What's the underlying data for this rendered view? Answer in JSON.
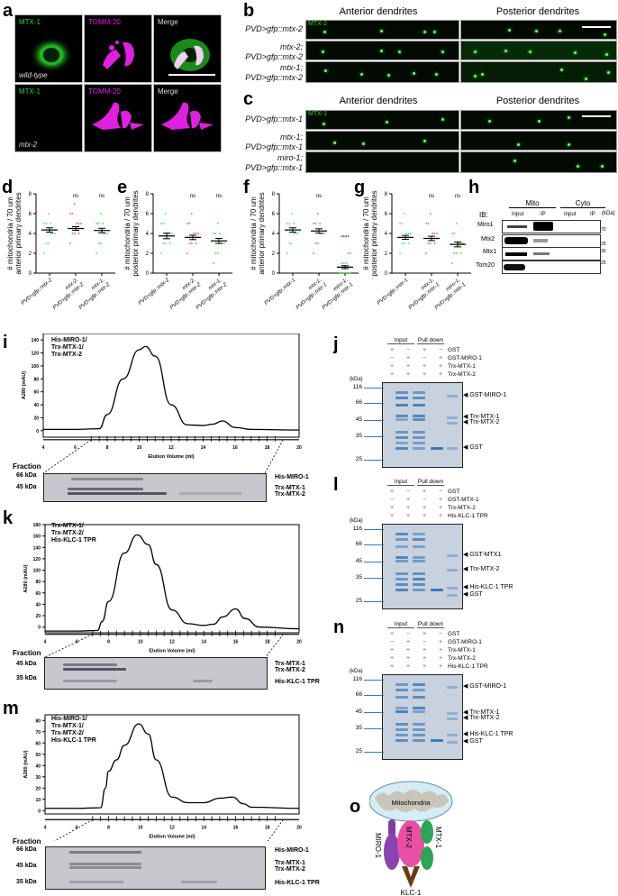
{
  "panels": {
    "a": {
      "label": "a",
      "columns": [
        "MTX-1",
        "TOMM-20",
        "Merge"
      ],
      "rows": [
        "wild-type",
        "mtx-2"
      ]
    },
    "b": {
      "label": "b",
      "col_headers": [
        "Anterior dendrites",
        "Posterior dendrites"
      ],
      "channel": "MTX-2",
      "rows": [
        "PVD>gfp::mtx-2",
        "mtx-2;\nPVD>gfp::mtx-2",
        "mtx-1;\nPVD>gfp::mtx-2"
      ]
    },
    "c": {
      "label": "c",
      "col_headers": [
        "Anterior dendrites",
        "Posterior dendrites"
      ],
      "channel": "MTX-1",
      "rows": [
        "PVD>gfp::mtx-1",
        "mtx-1;\nPVD>gfp::mtx-1",
        "miro-1;\nPVD>gfp::mtx-1"
      ]
    },
    "h": {
      "label": "h",
      "ib_label": "IB:",
      "groups": [
        "Mito",
        "Cyto"
      ],
      "lanes": [
        "Input",
        "IP",
        "Input",
        "IP"
      ],
      "kda_label": "(kDa)",
      "rows": [
        {
          "name": "Miro1",
          "marker": "70"
        },
        {
          "name": "Mtx2",
          "marker": "25"
        },
        {
          "name": "Mtx1",
          "marker": "35"
        },
        {
          "name": "Tom20",
          "marker": "25"
        }
      ]
    },
    "i": {
      "label": "i",
      "title": "His-MIRO-1/\nTrx-MTX-1/\nTrx-MTX-2",
      "ylabel": "A280 (mAU)",
      "xlabel": "Elution Volume (ml)",
      "fraction_label": "Fraction",
      "gel_markers": [
        "66 kDa",
        "45 kDa"
      ],
      "gel_bands": [
        "His-MIRO-1",
        "Trx-MTX-1",
        "Trx-MTX-2"
      ]
    },
    "j": {
      "label": "j",
      "groups": [
        "Input",
        "Pull down"
      ],
      "conditions": [
        {
          "name": "GST",
          "lanes": [
            "+",
            "−",
            "+",
            "−"
          ]
        },
        {
          "name": "GST-MIRO-1",
          "lanes": [
            "−",
            "+",
            "−",
            "+"
          ]
        },
        {
          "name": "Trx-MTX-1",
          "lanes": [
            "+",
            "+",
            "+",
            "+"
          ]
        },
        {
          "name": "Trx-MTX-2",
          "lanes": [
            "+",
            "+",
            "+",
            "+"
          ]
        }
      ],
      "kda_label": "(kDa)",
      "markers": [
        "116",
        "66",
        "45",
        "35",
        "25"
      ],
      "arrows": [
        "GST-MIRO-1",
        "Trx-MTX-1",
        "Trx-MTX-2",
        "GST"
      ]
    },
    "k": {
      "label": "k",
      "title": "Trx-MTX-1/\nTrx-MTX-2/\nHis-KLC-1 TPR",
      "ylabel": "A280 (mAU)",
      "xlabel": "Elution Volume (ml)",
      "fraction_label": "Fraction",
      "gel_markers": [
        "45 kDa",
        "35 kDa"
      ],
      "gel_bands": [
        "Trx-MTX-1",
        "Trx-MTX-2",
        "His-KLC-1 TPR"
      ]
    },
    "l": {
      "label": "l",
      "groups": [
        "Input",
        "Pull down"
      ],
      "conditions": [
        {
          "name": "GST",
          "lanes": [
            "+",
            "−",
            "+",
            "−"
          ]
        },
        {
          "name": "GST-MTX-1",
          "lanes": [
            "−",
            "+",
            "−",
            "+"
          ]
        },
        {
          "name": "Trx-MTX-2",
          "lanes": [
            "+",
            "+",
            "+",
            "+"
          ]
        },
        {
          "name": "His-KLC-1 TPR",
          "lanes": [
            "+",
            "+",
            "+",
            "+"
          ]
        }
      ],
      "kda_label": "(kDa)",
      "markers": [
        "116",
        "66",
        "45",
        "35",
        "25"
      ],
      "arrows": [
        "GST-MTX1",
        "Trx-MTX-2",
        "His-KLC-1 TPR",
        "GST"
      ]
    },
    "m": {
      "label": "m",
      "title": "His-MIRO-1/\nTrx-MTX-1/\nTrx-MTX-2/\nHis-KLC-1 TPR",
      "ylabel": "A280 (mAU)",
      "xlabel": "Elution Volume (ml)",
      "fraction_label": "Fraction",
      "gel_markers": [
        "66 kDa",
        "45 kDa",
        "35 kDa"
      ],
      "gel_bands": [
        "His-MIRO-1",
        "Trx-MTX-1",
        "Trx-MTX-2",
        "His-KLC-1 TPR"
      ]
    },
    "n": {
      "label": "n",
      "groups": [
        "Input",
        "Pull down"
      ],
      "conditions": [
        {
          "name": "GST",
          "lanes": [
            "+",
            "−",
            "+",
            "−"
          ]
        },
        {
          "name": "GST-MIRO-1",
          "lanes": [
            "−",
            "+",
            "−",
            "+"
          ]
        },
        {
          "name": "Trx-MTX-1",
          "lanes": [
            "+",
            "+",
            "+",
            "+"
          ]
        },
        {
          "name": "Trx-MTX-2",
          "lanes": [
            "+",
            "+",
            "+",
            "+"
          ]
        },
        {
          "name": "His-KLC-1 TPR",
          "lanes": [
            "+",
            "+",
            "+",
            "+"
          ]
        }
      ],
      "kda_label": "(kDa)",
      "markers": [
        "116",
        "66",
        "45",
        "35",
        "25"
      ],
      "arrows": [
        "GST-MIRO-1",
        "Trx-MTX-1",
        "Trx-MTX-2",
        "His-KLC-1 TPR",
        "GST"
      ]
    },
    "o": {
      "label": "o",
      "organelle": "Mitochondria",
      "proteins": [
        "MIRO-1",
        "MTX-2",
        "MTX-1",
        "KLC-1"
      ]
    }
  },
  "chart_data": [
    {
      "id": "d",
      "type": "scatter",
      "ylabel": "# mitochondria / 70 um\nanterior primary dendrites",
      "categories": [
        "PVD>gfp::mtx-2",
        "mtx-2;\nPVD>gfp::mtx-2",
        "mtx-1;\nPVD>gfp::mtx-2"
      ],
      "means": [
        4.35,
        4.5,
        4.3
      ],
      "sem": [
        0.22,
        0.18,
        0.22
      ],
      "significance": [
        "",
        "ns",
        "ns"
      ],
      "colors": [
        "#33d6e0",
        "#e040d0",
        "#33dd33"
      ],
      "ylim": [
        0,
        8
      ],
      "yticks": [
        0,
        2,
        4,
        6,
        8
      ]
    },
    {
      "id": "e",
      "type": "scatter",
      "ylabel": "# mitochondria / 70 um\nposterior primary dendrites",
      "categories": [
        "PVD>gfp::mtx-2",
        "mtx-2;\nPVD>gfp::mtx-2",
        "mtx-1;\nPVD>gfp::mtx-2"
      ],
      "means": [
        3.75,
        3.6,
        3.25
      ],
      "sem": [
        0.28,
        0.22,
        0.25
      ],
      "significance": [
        "",
        "ns",
        "ns"
      ],
      "colors": [
        "#33d6e0",
        "#e040d0",
        "#33dd33"
      ],
      "ylim": [
        0,
        8
      ],
      "yticks": [
        0,
        2,
        4,
        6,
        8
      ]
    },
    {
      "id": "f",
      "type": "scatter",
      "ylabel": "# mitochondria / 70 um\nanterior primary dendrites",
      "categories": [
        "PVD>gfp::mtx-1",
        "mtx-1;\nPVD>gfp::mtx-1",
        "miro-1;\nPVD>gfp::mtx-1"
      ],
      "means": [
        4.35,
        4.25,
        0.6
      ],
      "sem": [
        0.22,
        0.22,
        0.15
      ],
      "significance": [
        "",
        "ns",
        "****"
      ],
      "colors": [
        "#33d6e0",
        "#e040d0",
        "#33dd33"
      ],
      "ylim": [
        0,
        8
      ],
      "yticks": [
        0,
        2,
        4,
        6,
        8
      ]
    },
    {
      "id": "g",
      "type": "scatter",
      "ylabel": "# mitochondria / 70 um\nposterior primary dendrites",
      "categories": [
        "PVD>gfp::mtx-1",
        "mtx-1;\nPVD>gfp::mtx-1",
        "miro-1;\nPVD>gfp::mtx-1"
      ],
      "means": [
        3.6,
        3.5,
        2.9
      ],
      "sem": [
        0.2,
        0.22,
        0.25
      ],
      "significance": [
        "",
        "ns",
        "ns"
      ],
      "colors": [
        "#33d6e0",
        "#e040d0",
        "#33dd33"
      ],
      "ylim": [
        0,
        8
      ],
      "yticks": [
        0,
        2,
        4,
        6,
        8
      ]
    },
    {
      "id": "i",
      "type": "line",
      "title": "His-MIRO-1/Trx-MTX-1/Trx-MTX-2",
      "xlabel": "Elution Volume (ml)",
      "ylabel": "A280 (mAU)",
      "x": [
        4,
        6,
        7.5,
        8,
        9,
        10,
        10.4,
        11,
        12,
        13,
        14,
        14.6,
        15.2,
        16,
        17,
        20
      ],
      "y": [
        2,
        2,
        3,
        25,
        80,
        125,
        130,
        115,
        40,
        9,
        8,
        10,
        15,
        5,
        2,
        1
      ],
      "xlim": [
        4,
        20
      ],
      "ylim": [
        -10,
        150
      ],
      "xticks": [
        4,
        6,
        8,
        10,
        12,
        14,
        16,
        18,
        20
      ],
      "yticks": [
        0,
        20,
        40,
        60,
        80,
        100,
        120,
        140
      ]
    },
    {
      "id": "k",
      "type": "line",
      "title": "Trx-MTX-1/Trx-MTX-2/His-KLC-1 TPR",
      "xlabel": "Elution Volume (ml)",
      "ylabel": "A280 (mAU)",
      "x": [
        4,
        6,
        7.3,
        7.6,
        8,
        9,
        9.8,
        10.5,
        11,
        12,
        13,
        14,
        14.6,
        15.2,
        16,
        16.6,
        17.5,
        20
      ],
      "y": [
        -7,
        -7,
        -6,
        10,
        45,
        130,
        162,
        145,
        110,
        30,
        6,
        3,
        5,
        18,
        32,
        15,
        0,
        -3
      ],
      "xlim": [
        4,
        20
      ],
      "ylim": [
        -10,
        180
      ],
      "xticks": [
        4,
        6,
        8,
        10,
        12,
        14,
        16,
        18,
        20
      ],
      "yticks": [
        0,
        20,
        40,
        60,
        80,
        100,
        120,
        140,
        160,
        180
      ]
    },
    {
      "id": "m",
      "type": "line",
      "title": "His-MIRO-1/Trx-MTX-1/Trx-MTX-2/His-KLC-1 TPR",
      "xlabel": "Elution Volume (ml)",
      "ylabel": "A280 (mAU)",
      "x": [
        4,
        6,
        7.5,
        7.8,
        8,
        8.5,
        9,
        9.9,
        10.5,
        11,
        12,
        13,
        14,
        15,
        15.8,
        16.5,
        17,
        20
      ],
      "y": [
        2,
        2,
        2.5,
        20,
        35,
        45,
        58,
        77,
        68,
        45,
        12,
        7,
        7,
        11,
        12,
        6,
        3,
        2
      ],
      "xlim": [
        4,
        20
      ],
      "ylim": [
        -3,
        85
      ],
      "xticks": [
        4,
        6,
        8,
        10,
        12,
        14,
        16,
        18,
        20
      ],
      "yticks": [
        0,
        10,
        20,
        30,
        40,
        50,
        60,
        70,
        80
      ]
    }
  ]
}
